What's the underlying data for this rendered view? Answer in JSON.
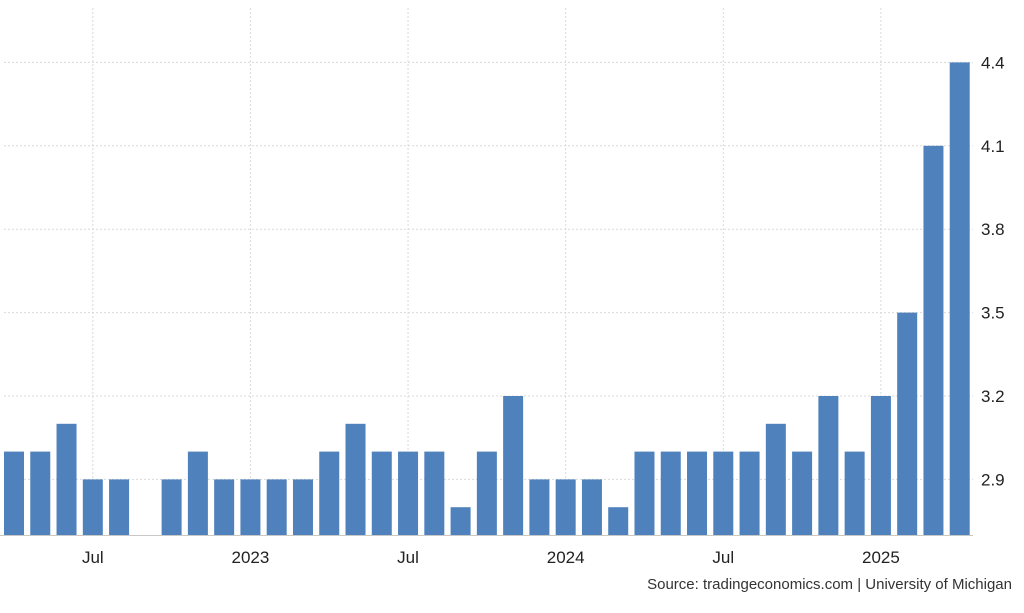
{
  "chart_data": {
    "type": "bar",
    "ylim": [
      2.7,
      4.5
    ],
    "y_ticks": [
      2.9,
      3.2,
      3.5,
      3.8,
      4.1,
      4.4
    ],
    "y_tick_labels": [
      "2.9",
      "3.2",
      "3.5",
      "3.8",
      "4.1",
      "4.4"
    ],
    "x_tick_labels": [
      {
        "label": "Jul",
        "index": 3
      },
      {
        "label": "2023",
        "index": 9
      },
      {
        "label": "Jul",
        "index": 15
      },
      {
        "label": "2024",
        "index": 21
      },
      {
        "label": "Jul",
        "index": 27
      },
      {
        "label": "2025",
        "index": 33
      }
    ],
    "series": [
      {
        "values": [
          3.0,
          3.0,
          3.1,
          2.9,
          2.9,
          2.7,
          2.9,
          3.0,
          2.9,
          2.9,
          2.9,
          2.9,
          3.0,
          3.1,
          3.0,
          3.0,
          3.0,
          2.8,
          3.0,
          3.2,
          2.9,
          2.9,
          2.9,
          2.8,
          3.0,
          3.0,
          3.0,
          3.0,
          3.0,
          3.1,
          3.0,
          3.2,
          3.0,
          3.2,
          3.5,
          4.1,
          4.4
        ]
      }
    ],
    "grid": true,
    "y_axis_position": "right",
    "bar_color": "#4f81bd"
  },
  "source": "Source: tradingeconomics.com | University of Michigan"
}
